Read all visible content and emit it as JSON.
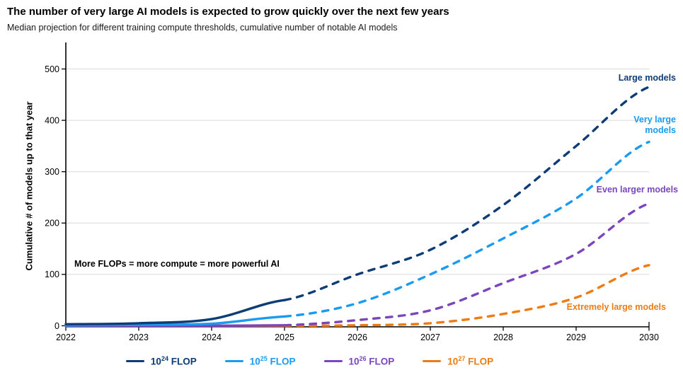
{
  "header": {
    "title": "The number of very large AI models is expected to grow quickly over the next few years",
    "subtitle": "Median projection for different training compute thresholds, cumulative number of notable AI models"
  },
  "chart_data": {
    "type": "line",
    "title": "The number of very large AI models is expected to grow quickly over the next few years",
    "subtitle": "Median projection for different training compute thresholds, cumulative number of notable AI models",
    "xlabel": "",
    "ylabel": "Cumulative # of models up to that year",
    "x": [
      2022,
      2023,
      2024,
      2025,
      2026,
      2027,
      2028,
      2029,
      2030
    ],
    "xtick_labels": [
      "2022",
      "2023",
      "2024",
      "2025",
      "2026",
      "2027",
      "2028",
      "2029",
      "2030"
    ],
    "yticks": [
      0,
      100,
      200,
      300,
      400,
      500
    ],
    "ytick_labels": [
      "0",
      "100",
      "200",
      "300",
      "400",
      "500"
    ],
    "ylim": [
      0,
      500
    ],
    "xlim": [
      2022,
      2030
    ],
    "grid": "horizontal",
    "annotation": "More FLOPs = more compute = more powerful AI",
    "line_style_note": "solid through 2025 (historical), dashed 2025-2030 (projection)",
    "solid_through": 2025,
    "legend_position": "bottom",
    "series": [
      {
        "name": "10^24 FLOP",
        "legend": {
          "base": "10",
          "exp": "24",
          "suffix": " FLOP"
        },
        "color": "#0d3c76",
        "end_label": "Large models",
        "values": [
          3,
          5,
          13,
          50,
          100,
          148,
          235,
          350,
          465
        ]
      },
      {
        "name": "10^25 FLOP",
        "legend": {
          "base": "10",
          "exp": "25",
          "suffix": " FLOP"
        },
        "color": "#189bf0",
        "end_label": "Very large models",
        "values": [
          1,
          2,
          4,
          18,
          44,
          100,
          170,
          248,
          358
        ]
      },
      {
        "name": "10^26 FLOP",
        "legend": {
          "base": "10",
          "exp": "26",
          "suffix": " FLOP"
        },
        "color": "#7a45bd",
        "end_label": "Even larger models",
        "values": [
          0,
          0,
          0,
          1,
          11,
          30,
          83,
          140,
          238
        ]
      },
      {
        "name": "10^27 FLOP",
        "legend": {
          "base": "10",
          "exp": "27",
          "suffix": " FLOP"
        },
        "color": "#ee7c14",
        "end_label": "Extremely large models",
        "values": [
          0,
          0,
          0,
          0,
          1,
          5,
          23,
          55,
          118
        ]
      }
    ],
    "style": {
      "grid_color": "#d9d9d9",
      "axis_color": "#000000",
      "background": "#ffffff"
    }
  }
}
